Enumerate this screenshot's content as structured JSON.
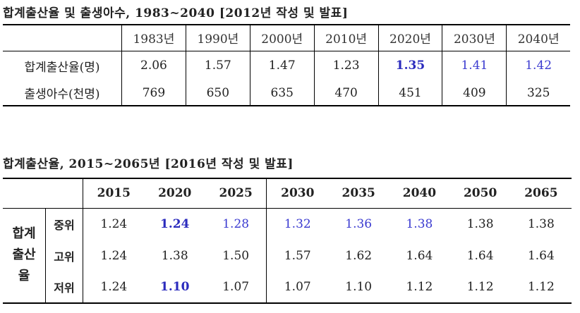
{
  "table1": {
    "title": "합계출산율 및 출생아수, 1983~2040 [2012년 작성 및 발표]",
    "years": [
      "1983년",
      "1990년",
      "2000년",
      "2010년",
      "2020년",
      "2030년",
      "2040년"
    ],
    "rows": [
      {
        "label": "합계출산율(명)",
        "values": [
          "2.06",
          "1.57",
          "1.47",
          "1.23",
          "1.35",
          "1.41",
          "1.42"
        ]
      },
      {
        "label": "출생아수(천명)",
        "values": [
          "769",
          "650",
          "635",
          "470",
          "451",
          "409",
          "325"
        ]
      }
    ]
  },
  "table2": {
    "title": "합계출산율, 2015~2065년 [2016년 작성 및 발표]",
    "years": [
      "2015",
      "2020",
      "2025",
      "2030",
      "2035",
      "2040",
      "2050",
      "2065"
    ],
    "group_label": "합계\n출산\n율",
    "rows": [
      {
        "label": "중위",
        "values": [
          "1.24",
          "1.24",
          "1.28",
          "1.32",
          "1.36",
          "1.38",
          "1.38",
          "1.38"
        ]
      },
      {
        "label": "고위",
        "values": [
          "1.24",
          "1.38",
          "1.50",
          "1.57",
          "1.62",
          "1.64",
          "1.64",
          "1.64"
        ]
      },
      {
        "label": "저위",
        "values": [
          "1.24",
          "1.10",
          "1.07",
          "1.07",
          "1.10",
          "1.12",
          "1.12",
          "1.12"
        ]
      }
    ]
  },
  "colors": {
    "highlight_blue": "#2b2bbd",
    "blue": "#3a3ad0"
  }
}
